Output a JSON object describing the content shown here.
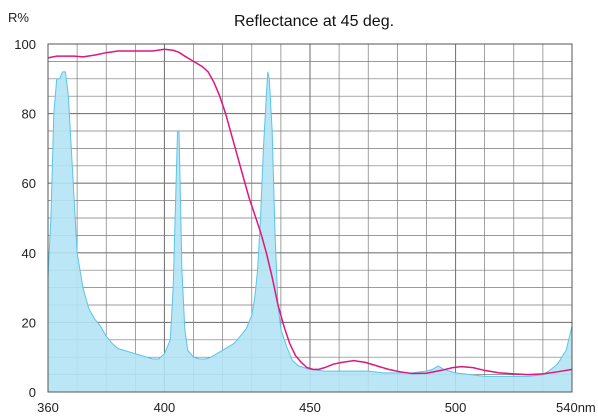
{
  "chart_data": {
    "type": "area",
    "title": "Reflectance at 45 deg.",
    "ylabel": "R%",
    "xlabel": "nm",
    "xlim": [
      360,
      540
    ],
    "ylim": [
      0,
      100
    ],
    "x_ticks": [
      360,
      400,
      450,
      500,
      540
    ],
    "y_ticks": [
      0,
      20,
      40,
      60,
      80,
      100
    ],
    "x_tick_labels": [
      "360",
      "400",
      "450",
      "500",
      "540nm"
    ],
    "y_tick_labels": [
      "0",
      "20",
      "40",
      "60",
      "80",
      "100"
    ],
    "grid": true,
    "colors": {
      "spectrum_fill": "#b3e3f4",
      "spectrum_stroke": "#5cc4e6",
      "reflectance_line": "#e0167a",
      "grid": "#7a7a7a"
    },
    "series": [
      {
        "kind": "area",
        "x": [
          360,
          361,
          362,
          363,
          364,
          365,
          366,
          367,
          368,
          369,
          370,
          372,
          374,
          376,
          378,
          380,
          382,
          384,
          386,
          388,
          390,
          392,
          394,
          396,
          398,
          400,
          402,
          403,
          404,
          404.5,
          405,
          405.5,
          406,
          407,
          408,
          410,
          412,
          414,
          416,
          418,
          420,
          422,
          424,
          426,
          428,
          430,
          431,
          432,
          433,
          434,
          435,
          435.5,
          436,
          437,
          438,
          439,
          440,
          442,
          444,
          446,
          448,
          450,
          455,
          460,
          465,
          470,
          475,
          480,
          485,
          490,
          492,
          494,
          495,
          496,
          498,
          500,
          505,
          510,
          515,
          520,
          525,
          530,
          532,
          535,
          538,
          540
        ],
        "values": [
          33,
          50,
          80,
          90,
          90,
          92,
          92,
          85,
          70,
          55,
          40,
          30,
          24,
          21,
          19,
          16,
          14,
          12.5,
          12,
          11.5,
          11,
          10.5,
          10,
          9.5,
          9.5,
          11,
          15,
          30,
          60,
          75,
          75,
          55,
          35,
          18,
          12,
          10,
          9.5,
          9.5,
          10,
          11,
          12,
          13,
          14,
          16,
          18,
          22,
          27,
          35,
          50,
          70,
          85,
          92,
          90,
          75,
          45,
          25,
          18,
          13,
          9,
          7.5,
          7,
          6.5,
          6,
          6,
          6,
          6,
          5.5,
          5.5,
          5.5,
          6,
          6.5,
          7.5,
          7,
          6.5,
          6,
          5.5,
          5,
          4.5,
          4.5,
          4.5,
          4.5,
          5,
          6,
          8,
          12,
          19
        ]
      },
      {
        "kind": "line",
        "x": [
          360,
          363,
          366,
          369,
          372,
          376,
          380,
          384,
          388,
          392,
          396,
          400,
          403,
          405,
          407,
          409,
          411,
          413,
          415,
          417,
          419,
          421,
          423,
          425,
          427,
          429,
          431,
          433,
          435,
          437,
          439,
          441,
          443,
          445,
          447,
          449,
          451,
          453,
          455,
          458,
          461,
          465,
          469,
          473,
          477,
          481,
          485,
          490,
          495,
          499,
          502,
          506,
          510,
          515,
          520,
          525,
          530,
          535,
          540
        ],
        "values": [
          96,
          96.5,
          96.5,
          96.5,
          96.3,
          96.8,
          97.5,
          98,
          98,
          98,
          98,
          98.5,
          98.2,
          97.6,
          96.5,
          95.5,
          94.5,
          93.5,
          92,
          89,
          85,
          80,
          74,
          68,
          62,
          56,
          51,
          46,
          40,
          33,
          25,
          19,
          14,
          10.5,
          8.5,
          7,
          6.5,
          6.5,
          7,
          8,
          8.5,
          9,
          8.5,
          7.5,
          6.5,
          5.8,
          5.3,
          5.4,
          6.2,
          7,
          7.3,
          7,
          6.2,
          5.5,
          5.2,
          5,
          5.2,
          5.8,
          6.5
        ]
      }
    ]
  }
}
